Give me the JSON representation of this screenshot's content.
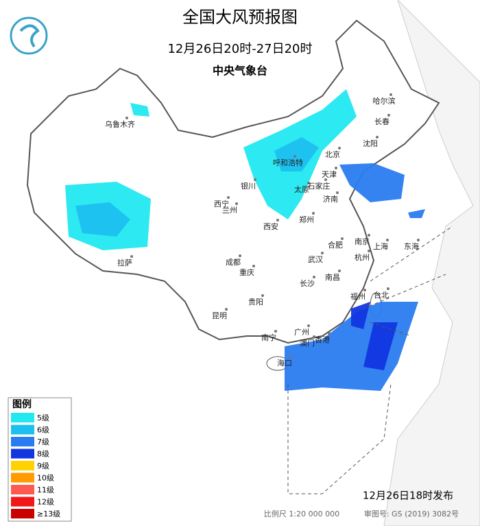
{
  "header": {
    "title": "全国大风预报图",
    "subtitle": "12月26日20时-27日20时",
    "agency": "中央气象台"
  },
  "legend": {
    "title": "图例",
    "items": [
      {
        "label": "5级",
        "color": "#22e8f0"
      },
      {
        "label": "6级",
        "color": "#1cc0f0"
      },
      {
        "label": "7级",
        "color": "#2a7cf0"
      },
      {
        "label": "8级",
        "color": "#1236e0"
      },
      {
        "label": "9级",
        "color": "#ffd200"
      },
      {
        "label": "10级",
        "color": "#ff9a00"
      },
      {
        "label": "11级",
        "color": "#ff5a50"
      },
      {
        "label": "12级",
        "color": "#f01818"
      },
      {
        "label": "≥13级",
        "color": "#c80000"
      }
    ]
  },
  "cities": [
    "乌鲁木齐",
    "哈尔滨",
    "长春",
    "沈阳",
    "呼和浩特",
    "北京",
    "天津",
    "银川",
    "太原",
    "石家庄",
    "济南",
    "西宁",
    "兰州",
    "郑州",
    "西安",
    "合肥",
    "南京",
    "上海",
    "杭州",
    "成都",
    "重庆",
    "武汉",
    "长沙",
    "南昌",
    "福州",
    "台北",
    "贵阳",
    "昆明",
    "南宁",
    "广州",
    "香港",
    "澳门",
    "海口",
    "拉萨",
    "东海"
  ],
  "footer": {
    "release": "12月26日18时发布",
    "scale": "比例尺 1:20 000 000",
    "review": "审图号: GS (2019) 3082号"
  }
}
